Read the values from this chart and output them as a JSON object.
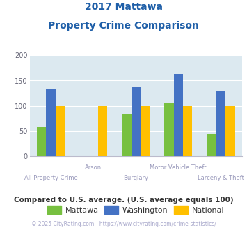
{
  "title_line1": "2017 Mattawa",
  "title_line2": "Property Crime Comparison",
  "categories": [
    "All Property Crime",
    "Arson",
    "Burglary",
    "Motor Vehicle Theft",
    "Larceny & Theft"
  ],
  "mattawa": [
    58,
    0,
    84,
    105,
    44
  ],
  "washington": [
    134,
    0,
    137,
    163,
    129
  ],
  "national": [
    100,
    100,
    100,
    100,
    100
  ],
  "mattawa_color": "#77c040",
  "washington_color": "#4472c4",
  "national_color": "#ffc000",
  "bg_color": "#dce9f0",
  "plot_bg": "#dce9f0",
  "title_color": "#1f5fa8",
  "xlabel_color": "#9999bb",
  "legend_label_color": "#333333",
  "footer_color": "#aaaacc",
  "note_color": "#333333",
  "ylim": [
    0,
    200
  ],
  "yticks": [
    0,
    50,
    100,
    150,
    200
  ],
  "bar_width": 0.22,
  "legend_labels": [
    "Mattawa",
    "Washington",
    "National"
  ],
  "note_text": "Compared to U.S. average. (U.S. average equals 100)",
  "footer_text": "© 2025 CityRating.com - https://www.cityrating.com/crime-statistics/"
}
